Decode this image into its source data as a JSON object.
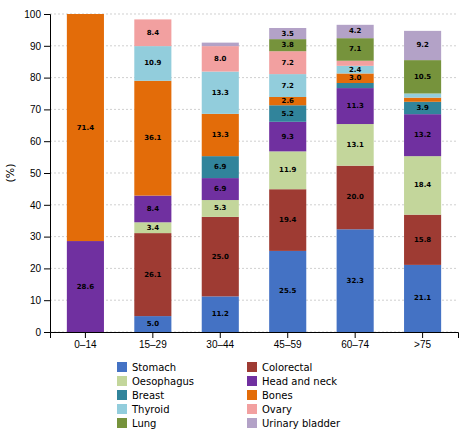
{
  "chart_data": {
    "type": "bar",
    "stacked": true,
    "categories": [
      "0–14",
      "15–29",
      "30–44",
      "45–59",
      "60–74",
      ">75"
    ],
    "y_label": "(%)",
    "ylim": [
      0,
      100
    ],
    "yticks": [
      0,
      10,
      20,
      30,
      40,
      50,
      60,
      70,
      80,
      90,
      100
    ],
    "grid": true,
    "legend": "bottom",
    "data_labels": true,
    "series": [
      {
        "name": "Stomach",
        "color": "#4472c4",
        "values": [
          0.0,
          5.0,
          11.2,
          25.5,
          32.3,
          21.1
        ],
        "value_labels": [
          null,
          "5.0",
          "11.2",
          "25.5",
          "32.3",
          "21.1"
        ]
      },
      {
        "name": "Colorectal",
        "color": "#9e3b33",
        "values": [
          0.0,
          26.1,
          25.0,
          19.4,
          20.0,
          15.8
        ],
        "value_labels": [
          null,
          "26.1",
          "25.0",
          "19.4",
          "20.0",
          "15.8"
        ]
      },
      {
        "name": "Oesophagus",
        "color": "#c3d69b",
        "values": [
          0.0,
          3.4,
          5.3,
          11.9,
          13.1,
          18.4
        ],
        "value_labels": [
          null,
          "3.4",
          "5.3",
          "11.9",
          "13.1",
          "18.4"
        ]
      },
      {
        "name": "Head and neck",
        "color": "#7030a0",
        "values": [
          28.6,
          8.4,
          6.9,
          9.3,
          11.3,
          13.2
        ],
        "value_labels": [
          "28.6",
          "8.4",
          "6.9",
          "9.3",
          "11.3",
          "13.2"
        ]
      },
      {
        "name": "Breast",
        "color": "#31849b",
        "values": [
          0.0,
          0.0,
          6.9,
          5.2,
          1.6,
          3.9
        ],
        "value_labels": [
          null,
          null,
          "6.9",
          "5.2",
          null,
          "3.9"
        ]
      },
      {
        "name": "Bones",
        "color": "#e36c09",
        "values": [
          71.4,
          36.1,
          13.3,
          2.6,
          3.0,
          1.3
        ],
        "value_labels": [
          "71.4",
          "36.1",
          "13.3",
          "2.6",
          "3.0",
          null
        ]
      },
      {
        "name": "Thyroid",
        "color": "#92cddc",
        "values": [
          0.0,
          10.9,
          13.3,
          7.2,
          2.4,
          1.3
        ],
        "value_labels": [
          null,
          "10.9",
          "13.3",
          "7.2",
          "2.4",
          null
        ]
      },
      {
        "name": "Ovary",
        "color": "#f2a0a0",
        "values": [
          0.0,
          8.4,
          8.0,
          7.2,
          1.6,
          0.0
        ],
        "value_labels": [
          null,
          "8.4",
          "8.0",
          "7.2",
          null,
          null
        ]
      },
      {
        "name": "Lung",
        "color": "#76933c",
        "values": [
          0.0,
          0.0,
          0.0,
          3.8,
          7.1,
          10.5
        ],
        "value_labels": [
          null,
          null,
          null,
          "3.8",
          "7.1",
          "10.5"
        ]
      },
      {
        "name": "Urinary bladder",
        "color": "#b3a2c7",
        "values": [
          0.0,
          0.0,
          1.1,
          3.5,
          4.2,
          9.2
        ],
        "value_labels": [
          null,
          null,
          null,
          "3.5",
          "4.2",
          "9.2"
        ]
      }
    ]
  }
}
